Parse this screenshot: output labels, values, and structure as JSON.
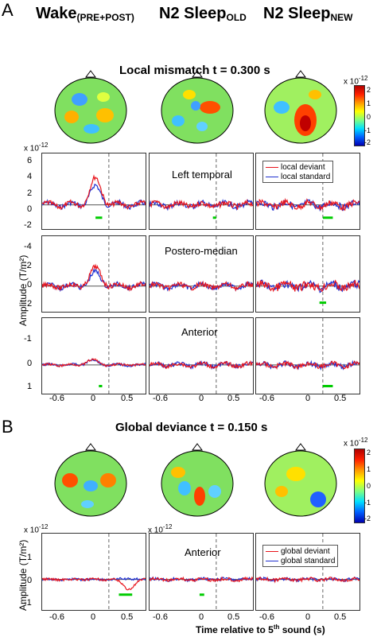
{
  "panels": {
    "a": "A",
    "b": "B"
  },
  "columns": [
    "Wake",
    "(PRE+POST)",
    "N2 Sleep",
    "OLD",
    "N2 Sleep",
    "NEW"
  ],
  "section_a_title": "Local mismatch t = 0.300 s",
  "section_b_title": "Global deviance t = 0.150 s",
  "exponent": "x 10",
  "exponent_power": "-12",
  "colorbar_ticks": [
    "2",
    "1",
    "0",
    "-1",
    "-2"
  ],
  "ylabel_a": "Amplitude (T/m²)",
  "ylabel_b": "Amplitude (T/m²)",
  "xlabel": "Time relative to 5",
  "xlabel_sup": "th",
  "xlabel_tail": " sound (s)",
  "row_labels": [
    "Left temporal",
    "Postero-median",
    "Anterior"
  ],
  "row_b_label": "Anterior",
  "legend_a": [
    "local deviant",
    "local standard"
  ],
  "legend_b": [
    "global deviant",
    "global standard"
  ],
  "colors": {
    "deviant": "#e8141c",
    "standard": "#2030d0",
    "sig": "#00cc00",
    "zero": "#555555",
    "dash": "#666666"
  },
  "yticks_row1": [
    "6",
    "4",
    "2",
    "0",
    "-2"
  ],
  "yticks_row2": [
    "-4",
    "-2",
    "0",
    "2"
  ],
  "yticks_row3": [
    "-1",
    "0",
    "1"
  ],
  "yticks_b": [
    "1",
    "0",
    "-1"
  ],
  "xticks": [
    "-0.6",
    "0",
    "0.5"
  ],
  "chart_data": {
    "type": "line",
    "x_range": [
      -0.7,
      0.85
    ],
    "events_dashed_at": [
      0.15,
      0.3
    ],
    "rows": [
      {
        "name": "Left temporal",
        "ylim": [
          -2.5,
          7
        ],
        "invert": false,
        "wake": {
          "deviant_peak": 5.2,
          "standard_peak": 3.6
        }
      },
      {
        "name": "Postero-median",
        "ylim": [
          -5,
          3
        ],
        "invert": true
      },
      {
        "name": "Anterior",
        "ylim": [
          -2,
          1.5
        ],
        "invert": true
      },
      {
        "name": "Anterior (global)",
        "ylim": [
          -1.5,
          1.5
        ],
        "invert": false
      }
    ]
  }
}
